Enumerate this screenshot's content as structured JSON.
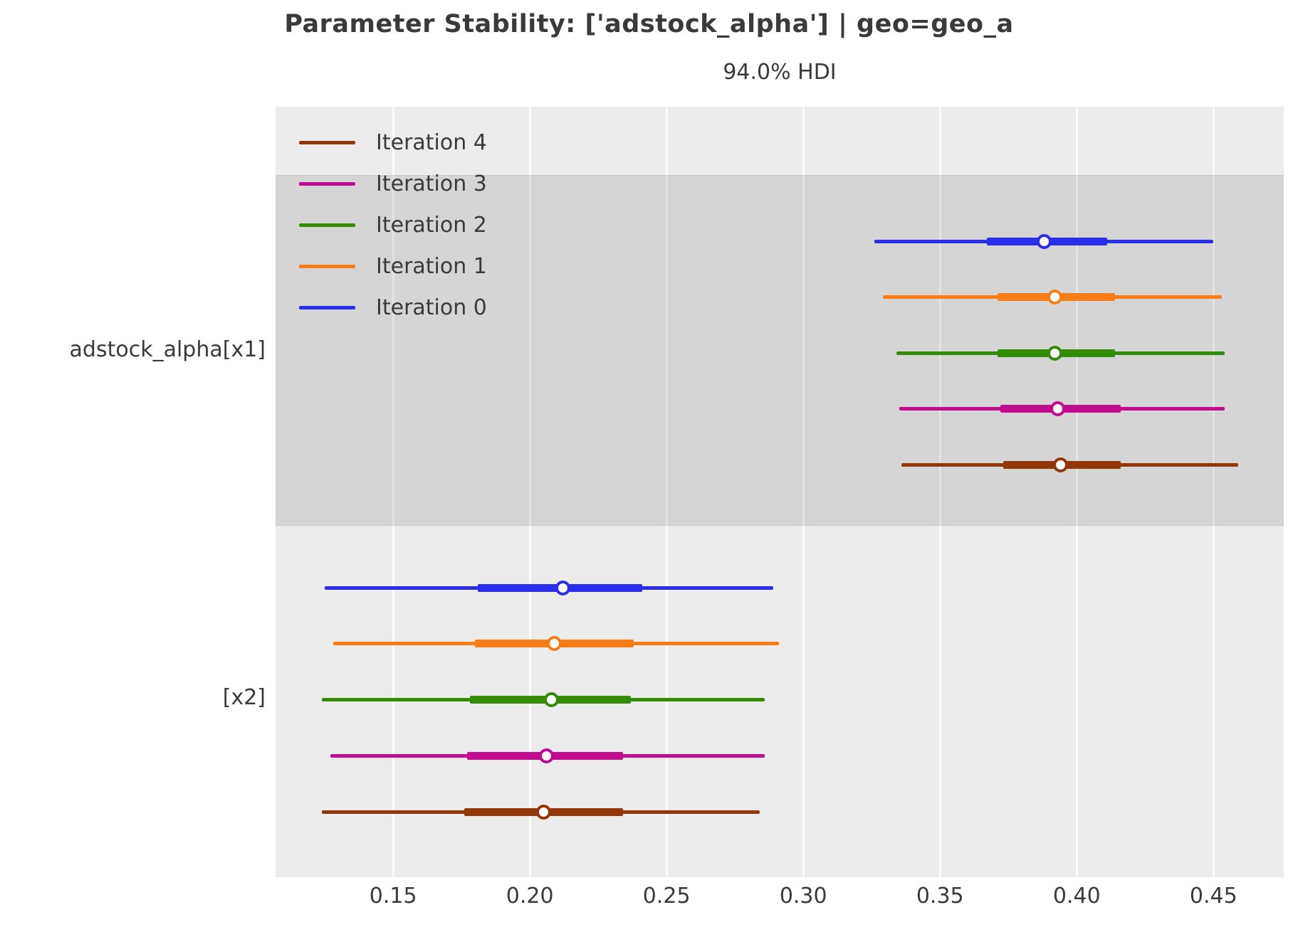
{
  "title": "Parameter Stability: ['adstock_alpha'] | geo=geo_a",
  "subtitle": "94.0% HDI",
  "chart_data": {
    "type": "forest",
    "title": "Parameter Stability: ['adstock_alpha'] | geo=geo_a",
    "subtitle": "94.0% HDI",
    "hdi_probability": "94.0%",
    "xlim": [
      0.107,
      0.4757
    ],
    "x_ticks": [
      {
        "value": 0.15,
        "label": "0.15"
      },
      {
        "value": 0.2,
        "label": "0.20"
      },
      {
        "value": 0.25,
        "label": "0.25"
      },
      {
        "value": 0.3,
        "label": "0.30"
      },
      {
        "value": 0.35,
        "label": "0.35"
      },
      {
        "value": 0.4,
        "label": "0.40"
      },
      {
        "value": 0.45,
        "label": "0.45"
      }
    ],
    "grid": true,
    "legend_position": "upper-left",
    "legend": [
      {
        "label": "Iteration 4",
        "color": "#933708"
      },
      {
        "label": "Iteration 3",
        "color": "#c10c90"
      },
      {
        "label": "Iteration 2",
        "color": "#328c06"
      },
      {
        "label": "Iteration 1",
        "color": "#fa7c17"
      },
      {
        "label": "Iteration 0",
        "color": "#2a2eec"
      }
    ],
    "groups": [
      {
        "label": "adstock_alpha[x1]",
        "shaded": true,
        "rows": [
          {
            "name": "Iteration 0",
            "color": "#2a2eec",
            "hdi_lo": 0.326,
            "q1": 0.367,
            "median": 0.388,
            "q3": 0.411,
            "hdi_hi": 0.45
          },
          {
            "name": "Iteration 1",
            "color": "#fa7c17",
            "hdi_lo": 0.329,
            "q1": 0.371,
            "median": 0.392,
            "q3": 0.414,
            "hdi_hi": 0.453
          },
          {
            "name": "Iteration 2",
            "color": "#328c06",
            "hdi_lo": 0.334,
            "q1": 0.371,
            "median": 0.392,
            "q3": 0.414,
            "hdi_hi": 0.454
          },
          {
            "name": "Iteration 3",
            "color": "#c10c90",
            "hdi_lo": 0.335,
            "q1": 0.372,
            "median": 0.393,
            "q3": 0.416,
            "hdi_hi": 0.454
          },
          {
            "name": "Iteration 4",
            "color": "#933708",
            "hdi_lo": 0.336,
            "q1": 0.373,
            "median": 0.394,
            "q3": 0.416,
            "hdi_hi": 0.459
          }
        ]
      },
      {
        "label": "[x2]",
        "shaded": false,
        "rows": [
          {
            "name": "Iteration 0",
            "color": "#2a2eec",
            "hdi_lo": 0.125,
            "q1": 0.181,
            "median": 0.212,
            "q3": 0.241,
            "hdi_hi": 0.289
          },
          {
            "name": "Iteration 1",
            "color": "#fa7c17",
            "hdi_lo": 0.128,
            "q1": 0.18,
            "median": 0.209,
            "q3": 0.238,
            "hdi_hi": 0.291
          },
          {
            "name": "Iteration 2",
            "color": "#328c06",
            "hdi_lo": 0.124,
            "q1": 0.178,
            "median": 0.208,
            "q3": 0.237,
            "hdi_hi": 0.286
          },
          {
            "name": "Iteration 3",
            "color": "#c10c90",
            "hdi_lo": 0.127,
            "q1": 0.177,
            "median": 0.206,
            "q3": 0.234,
            "hdi_hi": 0.286
          },
          {
            "name": "Iteration 4",
            "color": "#933708",
            "hdi_lo": 0.124,
            "q1": 0.176,
            "median": 0.205,
            "q3": 0.234,
            "hdi_hi": 0.284
          }
        ]
      }
    ]
  }
}
